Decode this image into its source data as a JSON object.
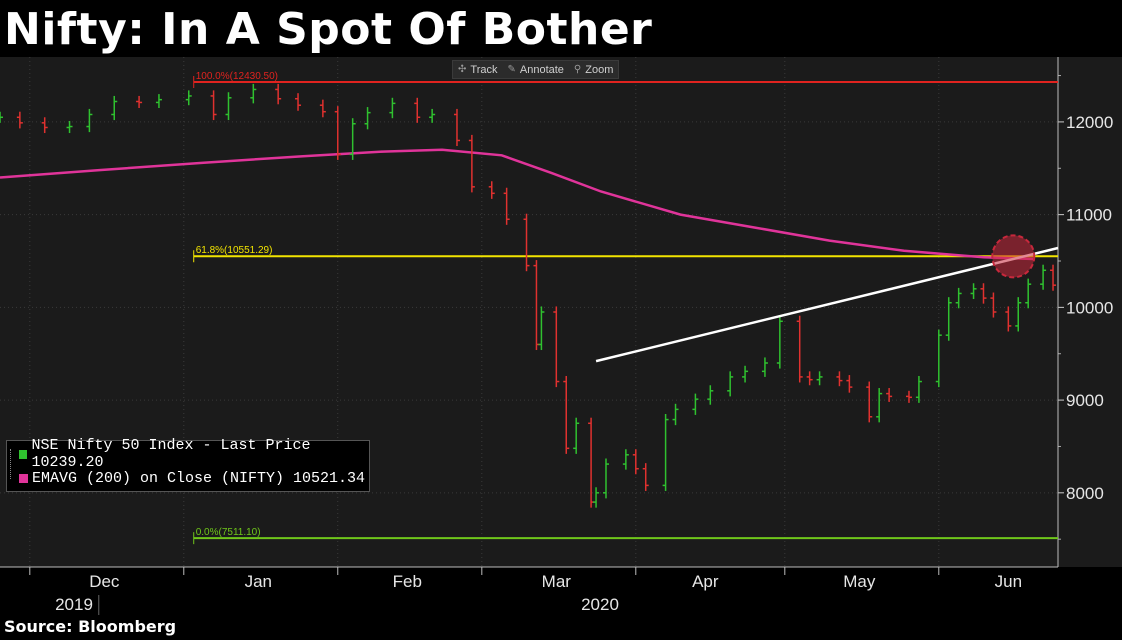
{
  "title": "Nifty: In A Spot Of Bother",
  "source": "Source: Bloomberg",
  "toolbar": {
    "track": "Track",
    "annotate": "Annotate",
    "zoom": "Zoom"
  },
  "legend": {
    "row1": "NSE Nifty 50 Index - Last Price 10239.20",
    "row2": "EMAVG (200)  on Close (NIFTY) 10521.34"
  },
  "colors": {
    "background": "#1b1b1b",
    "up_bar": "#2fc12f",
    "down_bar": "#e0312f",
    "ema": "#e0349a",
    "fib100": "#e0231f",
    "fib618": "#f2e400",
    "fib0": "#6fc71b",
    "trendline": "#ffffff",
    "highlight": "#c8283c"
  },
  "chart_data": {
    "type": "line",
    "title": "Nifty: In A Spot Of Bother",
    "x_tick_labels": [
      "Dec",
      "Jan",
      "Feb",
      "Mar",
      "Apr",
      "May",
      "Jun"
    ],
    "x_year_labels": [
      "2019",
      "2020"
    ],
    "y_tick_labels": [
      "8000",
      "9000",
      "10000",
      "11000",
      "12000"
    ],
    "ylim": [
      7200,
      12700
    ],
    "xlim": [
      "2019-11-25",
      "2020-06-25"
    ],
    "grid": true,
    "legend_position": "bottom-left",
    "series": [
      {
        "name": "NSE Nifty 50 Index - Last Price",
        "last_value": 10239.2,
        "x": [
          "2019-11-25",
          "2019-11-29",
          "2019-12-04",
          "2019-12-09",
          "2019-12-13",
          "2019-12-18",
          "2019-12-23",
          "2019-12-27",
          "2020-01-02",
          "2020-01-07",
          "2020-01-10",
          "2020-01-15",
          "2020-01-20",
          "2020-01-24",
          "2020-01-29",
          "2020-02-01",
          "2020-02-04",
          "2020-02-07",
          "2020-02-12",
          "2020-02-17",
          "2020-02-20",
          "2020-02-25",
          "2020-02-28",
          "2020-03-03",
          "2020-03-06",
          "2020-03-10",
          "2020-03-12",
          "2020-03-13",
          "2020-03-16",
          "2020-03-18",
          "2020-03-20",
          "2020-03-23",
          "2020-03-24",
          "2020-03-26",
          "2020-03-30",
          "2020-04-01",
          "2020-04-03",
          "2020-04-07",
          "2020-04-09",
          "2020-04-13",
          "2020-04-16",
          "2020-04-20",
          "2020-04-23",
          "2020-04-27",
          "2020-04-30",
          "2020-05-04",
          "2020-05-06",
          "2020-05-08",
          "2020-05-12",
          "2020-05-14",
          "2020-05-18",
          "2020-05-20",
          "2020-05-22",
          "2020-05-26",
          "2020-05-28",
          "2020-06-01",
          "2020-06-03",
          "2020-06-05",
          "2020-06-08",
          "2020-06-10",
          "2020-06-12",
          "2020-06-15",
          "2020-06-17",
          "2020-06-19",
          "2020-06-22",
          "2020-06-24"
        ],
        "values": [
          12050,
          11990,
          11940,
          11950,
          12080,
          12220,
          12210,
          12240,
          12280,
          12080,
          12260,
          12350,
          12250,
          12180,
          12110,
          11650,
          11980,
          12100,
          12200,
          12050,
          12080,
          11800,
          11300,
          11230,
          10950,
          10450,
          9600,
          9950,
          9200,
          8480,
          8750,
          7900,
          8000,
          8310,
          8410,
          8260,
          8080,
          8790,
          8900,
          9010,
          9100,
          9250,
          9310,
          9400,
          9850,
          9250,
          9220,
          9250,
          9210,
          9140,
          8820,
          9070,
          9040,
          9030,
          9200,
          9700,
          10050,
          10150,
          10200,
          10100,
          9950,
          9800,
          10050,
          10250,
          10400,
          10239.2
        ]
      },
      {
        "name": "EMAVG (200)  on Close (NIFTY)",
        "last_value": 10521.34,
        "x": [
          "2019-11-25",
          "2019-12-15",
          "2020-01-05",
          "2020-01-25",
          "2020-02-10",
          "2020-02-22",
          "2020-03-05",
          "2020-03-15",
          "2020-03-25",
          "2020-04-10",
          "2020-04-25",
          "2020-05-10",
          "2020-05-25",
          "2020-06-10",
          "2020-06-20"
        ],
        "values": [
          11400,
          11480,
          11560,
          11630,
          11680,
          11700,
          11640,
          11450,
          11250,
          11000,
          10860,
          10720,
          10610,
          10540,
          10521.34
        ]
      }
    ],
    "horizontal_lines": [
      {
        "label": "100.0%(12430.50)",
        "value": 12430.5,
        "from": "2020-01-03"
      },
      {
        "label": "61.8%(10551.29)",
        "value": 10551.29,
        "from": "2020-01-03"
      },
      {
        "label": "0.0%(7511.10)",
        "value": 7511.1,
        "from": "2020-01-03"
      }
    ],
    "trendline": {
      "start": [
        "2020-03-24",
        9420
      ],
      "end": [
        "2020-06-25",
        10640
      ]
    },
    "highlight": {
      "x": "2020-06-16",
      "y": 10550
    }
  }
}
